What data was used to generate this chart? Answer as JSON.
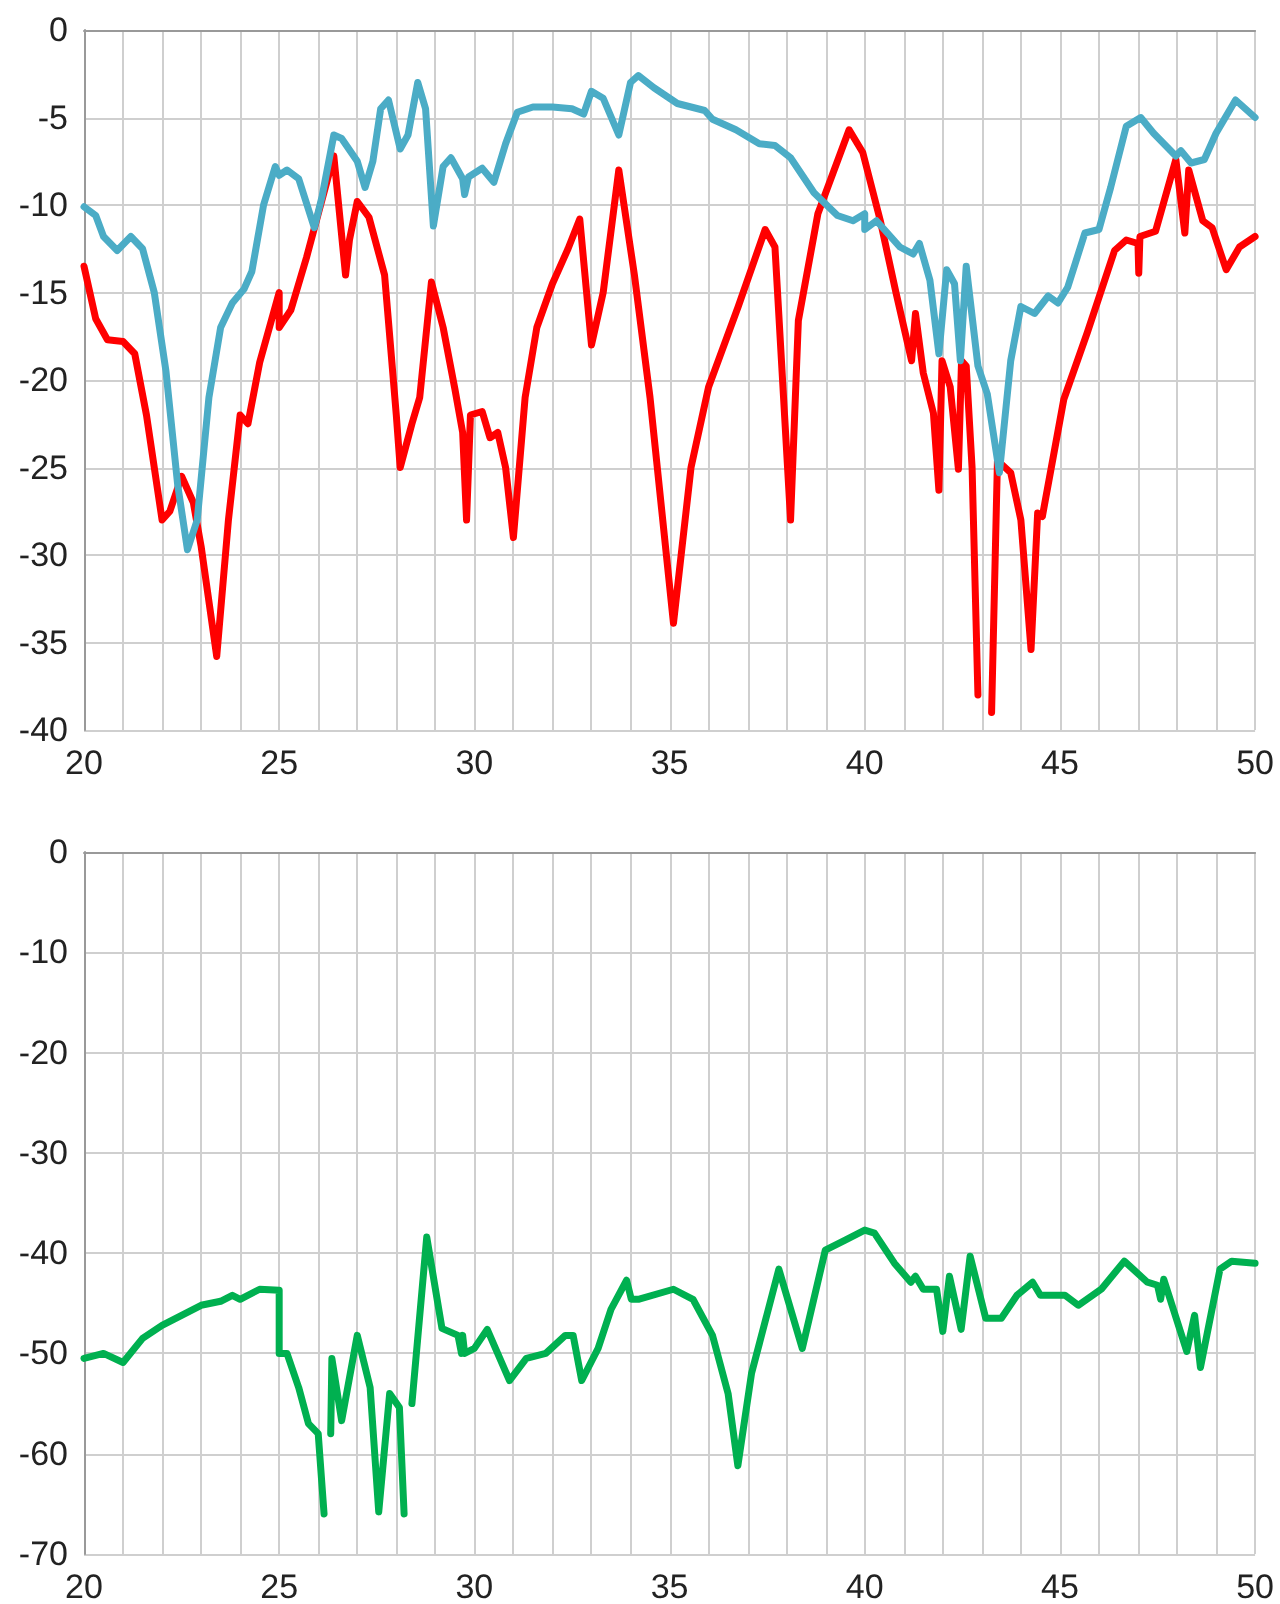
{
  "chart_data": [
    {
      "type": "line",
      "marker": "none",
      "grid": true,
      "xlim": [
        20,
        50
      ],
      "ylim": [
        -40,
        0
      ],
      "xticks": [
        20,
        {
          "value": 21,
          "label": null
        },
        {
          "value": 22,
          "label": null
        },
        {
          "value": 23,
          "label": null
        },
        {
          "value": 24,
          "label": null
        },
        25,
        {
          "value": 26,
          "label": null
        },
        {
          "value": 27,
          "label": null
        },
        {
          "value": 28,
          "label": null
        },
        {
          "value": 29,
          "label": null
        },
        30,
        {
          "value": 31,
          "label": null
        },
        {
          "value": 32,
          "label": null
        },
        {
          "value": 33,
          "label": null
        },
        {
          "value": 34,
          "label": null
        },
        35,
        {
          "value": 36,
          "label": null
        },
        {
          "value": 37,
          "label": null
        },
        {
          "value": 38,
          "label": null
        },
        {
          "value": 39,
          "label": null
        },
        40,
        {
          "value": 41,
          "label": null
        },
        {
          "value": 42,
          "label": null
        },
        {
          "value": 43,
          "label": null
        },
        {
          "value": 44,
          "label": null
        },
        45,
        {
          "value": 46,
          "label": null
        },
        {
          "value": 47,
          "label": null
        },
        {
          "value": 48,
          "label": null
        },
        {
          "value": 49,
          "label": null
        },
        50
      ],
      "yticks": [
        -40,
        -35,
        -30,
        -25,
        -20,
        -15,
        -10,
        -5,
        0
      ],
      "series": [
        {
          "color": "#ff0000",
          "x": [
            20,
            20.3,
            20.6,
            21,
            21.3,
            21.6,
            22,
            22.2,
            22.5,
            22.8,
            23,
            23.4,
            23.7,
            24,
            24.2,
            24.5,
            25,
            25,
            25.3,
            25.7,
            26,
            26.4,
            26.7,
            26.8,
            27,
            27.3,
            27.7,
            28,
            28.1,
            28.4,
            28.6,
            28.9,
            29.2,
            29.5,
            29.7,
            29.8,
            29.9,
            30.2,
            30.4,
            30.6,
            30.8,
            31,
            31.3,
            31.6,
            32,
            32.4,
            32.7,
            33,
            33.3,
            33.7,
            34.1,
            34.5,
            35.1,
            35.55,
            36,
            36.76,
            37.45,
            37.7,
            38.1,
            38.3,
            38.8,
            39.6,
            39.95,
            40.4,
            40.8,
            41.2,
            41.3,
            41.5,
            41.76,
            41.9,
            41.98,
            42.19,
            42.4,
            42.48,
            42.6,
            42.75,
            42.9,
            43.05,
            43.25,
            43.4,
            43.74,
            44,
            44.26,
            44.43,
            44.55,
            45.1,
            45.7,
            46.4,
            46.7,
            47,
            47.02,
            47.05,
            47.45,
            47.97,
            48.2,
            48.3,
            48.66,
            48.9,
            49.26,
            49.6,
            50
          ],
          "values": [
            -13.5,
            -16.5,
            -17.7,
            -17.8,
            -18.5,
            -22,
            -28,
            -27.5,
            -25.5,
            -27,
            -29.5,
            -35.8,
            -28,
            -22,
            -22.5,
            -19,
            -15,
            -17,
            -16,
            -13,
            -10.5,
            -7.2,
            -14,
            -12,
            -9.8,
            -10.7,
            -14,
            -22,
            -25,
            -22.5,
            -21,
            -14.4,
            -17,
            -20.5,
            -23,
            -28,
            -22,
            -21.8,
            -23.3,
            -23,
            -25,
            -29,
            -21,
            -17,
            -14.5,
            -12.5,
            -10.8,
            -18,
            -15,
            -8,
            -14,
            -21,
            -33.9,
            -25,
            -20.4,
            -15.8,
            -11.4,
            -12.4,
            -28,
            -16.6,
            -10.5,
            -5.7,
            -7,
            -10.9,
            -15,
            -18.9,
            -16.2,
            -19.6,
            -21.9,
            -26.3,
            -18.9,
            -20.4,
            -25.1,
            -18.9,
            -19.2,
            -25,
            -38,
            null,
            -39,
            -24.6,
            -25.3,
            -28,
            -35.4,
            -27.6,
            -27.8,
            -21.1,
            -17.3,
            -12.6,
            -12,
            -12.2,
            -13.9,
            -11.8,
            -11.5,
            -7.4,
            -11.6,
            -8,
            -10.9,
            -11.3,
            -13.7,
            -12.4,
            -11.8
          ]
        },
        {
          "color": "#4bacc6",
          "x": [
            20,
            20.3,
            20.5,
            20.85,
            21.2,
            21.5,
            21.8,
            22.1,
            22.4,
            22.65,
            22.9,
            23.2,
            23.5,
            23.8,
            24.1,
            24.3,
            24.6,
            24.9,
            25,
            25.2,
            25.5,
            25.9,
            26.1,
            26.4,
            26.6,
            27,
            27.2,
            27.4,
            27.6,
            27.8,
            28.1,
            28.3,
            28.55,
            28.75,
            28.95,
            29.2,
            29.4,
            29.7,
            29.75,
            29.85,
            30.2,
            30.5,
            30.8,
            31.1,
            31.5,
            32,
            32.5,
            32.8,
            33,
            33.3,
            33.7,
            34,
            34.2,
            34.6,
            35.2,
            35.9,
            36.1,
            36.7,
            37.3,
            37.7,
            38.1,
            38.7,
            39.3,
            39.7,
            40,
            40,
            40.3,
            40.9,
            41.24,
            41.4,
            41.67,
            41.9,
            42.1,
            42.3,
            42.45,
            42.6,
            42.9,
            43.14,
            43.45,
            43.74,
            44,
            44.35,
            44.7,
            44.95,
            45.2,
            45.64,
            46,
            46.3,
            46.7,
            47.07,
            47.4,
            47.97,
            48.1,
            48.36,
            48.7,
            49,
            49.5,
            50
          ],
          "values": [
            -10.1,
            -10.6,
            -11.8,
            -12.6,
            -11.8,
            -12.5,
            -15,
            -19.5,
            -26,
            -29.7,
            -28,
            -21,
            -17,
            -15.6,
            -14.8,
            -13.8,
            -10,
            -7.8,
            -8.3,
            -8,
            -8.5,
            -11.3,
            -9.5,
            -6,
            -6.2,
            -7.5,
            -9,
            -7.5,
            -4.5,
            -4,
            -6.8,
            -6,
            -3,
            -4.5,
            -11.2,
            -7.8,
            -7.3,
            -8.5,
            -9.4,
            -8.4,
            -7.9,
            -8.7,
            -6.5,
            -4.7,
            -4.4,
            -4.4,
            -4.5,
            -4.8,
            -3.5,
            -3.9,
            -6,
            -3,
            -2.6,
            -3.3,
            -4.2,
            -4.6,
            -5.1,
            -5.7,
            -6.5,
            -6.6,
            -7.3,
            -9.3,
            -10.6,
            -10.9,
            -10.5,
            -11.4,
            -10.9,
            -12.4,
            -12.8,
            -12.2,
            -14.3,
            -18.5,
            -13.7,
            -14.5,
            -18.9,
            -13.5,
            -19.2,
            -20.8,
            -25.3,
            -18.9,
            -15.8,
            -16.2,
            -15.2,
            -15.6,
            -14.7,
            -11.6,
            -11.4,
            -9,
            -5.5,
            -5,
            -5.9,
            -7.2,
            -6.9,
            -7.6,
            -7.4,
            -5.9,
            -4,
            -5
          ]
        }
      ]
    },
    {
      "type": "line",
      "marker": "none",
      "grid": true,
      "xlim": [
        20,
        50
      ],
      "ylim": [
        -70,
        0
      ],
      "xticks": [
        20,
        {
          "value": 21,
          "label": null
        },
        {
          "value": 22,
          "label": null
        },
        {
          "value": 23,
          "label": null
        },
        {
          "value": 24,
          "label": null
        },
        25,
        {
          "value": 26,
          "label": null
        },
        {
          "value": 27,
          "label": null
        },
        {
          "value": 28,
          "label": null
        },
        {
          "value": 29,
          "label": null
        },
        30,
        {
          "value": 31,
          "label": null
        },
        {
          "value": 32,
          "label": null
        },
        {
          "value": 33,
          "label": null
        },
        {
          "value": 34,
          "label": null
        },
        35,
        {
          "value": 36,
          "label": null
        },
        {
          "value": 37,
          "label": null
        },
        {
          "value": 38,
          "label": null
        },
        {
          "value": 39,
          "label": null
        },
        40,
        {
          "value": 41,
          "label": null
        },
        {
          "value": 42,
          "label": null
        },
        {
          "value": 43,
          "label": null
        },
        {
          "value": 44,
          "label": null
        },
        45,
        {
          "value": 46,
          "label": null
        },
        {
          "value": 47,
          "label": null
        },
        {
          "value": 48,
          "label": null
        },
        {
          "value": 49,
          "label": null
        },
        50
      ],
      "yticks": [
        -70,
        -60,
        -50,
        -40,
        -30,
        -20,
        -10,
        0
      ],
      "series": [
        {
          "color": "#00b050",
          "x": [
            20,
            20.5,
            21,
            21.5,
            22,
            22.5,
            23,
            23.5,
            23.8,
            24,
            24.5,
            25,
            25,
            25.2,
            25.5,
            25.75,
            26,
            26.15,
            26.22,
            26.32,
            26.35,
            26.6,
            27,
            27.33,
            27.55,
            27.83,
            28.08,
            28.2,
            28.3,
            28.4,
            28.78,
            29.17,
            29.58,
            29.67,
            29.7,
            29.75,
            30,
            30.33,
            30.9,
            31.33,
            31.83,
            32.33,
            32.53,
            32.75,
            33.17,
            33.5,
            33.9,
            34.02,
            34.2,
            35.1,
            35.6,
            36.1,
            36.5,
            36.75,
            37.1,
            37.8,
            38.4,
            38.99,
            39.5,
            40,
            40.25,
            40.76,
            41.18,
            41.3,
            41.5,
            41.84,
            42,
            42.17,
            42.47,
            42.7,
            43.1,
            43.5,
            43.9,
            44.3,
            44.5,
            45.13,
            45.47,
            46.06,
            46.65,
            47.24,
            47.5,
            47.58,
            47.66,
            48.25,
            48.45,
            48.6,
            49.1,
            49.4,
            50
          ],
          "values": [
            -50.5,
            -50,
            -50.9,
            -48.5,
            -47.2,
            -46.2,
            -45.2,
            -44.8,
            -44.2,
            -44.6,
            -43.6,
            -43.7,
            -50,
            -50,
            -53.4,
            -57,
            -58,
            -66,
            null,
            -58,
            -50.5,
            -56.7,
            -48.2,
            -53.4,
            -65.8,
            -54,
            -55.4,
            -66,
            null,
            -55,
            -38.4,
            -47.5,
            -48.2,
            -50,
            -48.2,
            -50,
            -49.5,
            -47.6,
            -52.7,
            -50.5,
            -50,
            -48.2,
            -48.2,
            -52.7,
            -49.5,
            -45.6,
            -42.7,
            -44.6,
            -44.6,
            -43.6,
            -44.6,
            -48.2,
            -54,
            -61.2,
            -52,
            -41.6,
            -49.5,
            -39.7,
            -38.7,
            -37.7,
            -38,
            -41,
            -42.9,
            -42.3,
            -43.6,
            -43.6,
            -47.8,
            -42.3,
            -47.6,
            -40.3,
            -46.5,
            -46.5,
            -44.2,
            -42.9,
            -44.2,
            -44.2,
            -45.2,
            -43.6,
            -40.8,
            -42.9,
            -43.2,
            -44.6,
            -42.6,
            -49.8,
            -46.2,
            -51.4,
            -41.6,
            -40.8,
            -41
          ]
        }
      ]
    }
  ]
}
